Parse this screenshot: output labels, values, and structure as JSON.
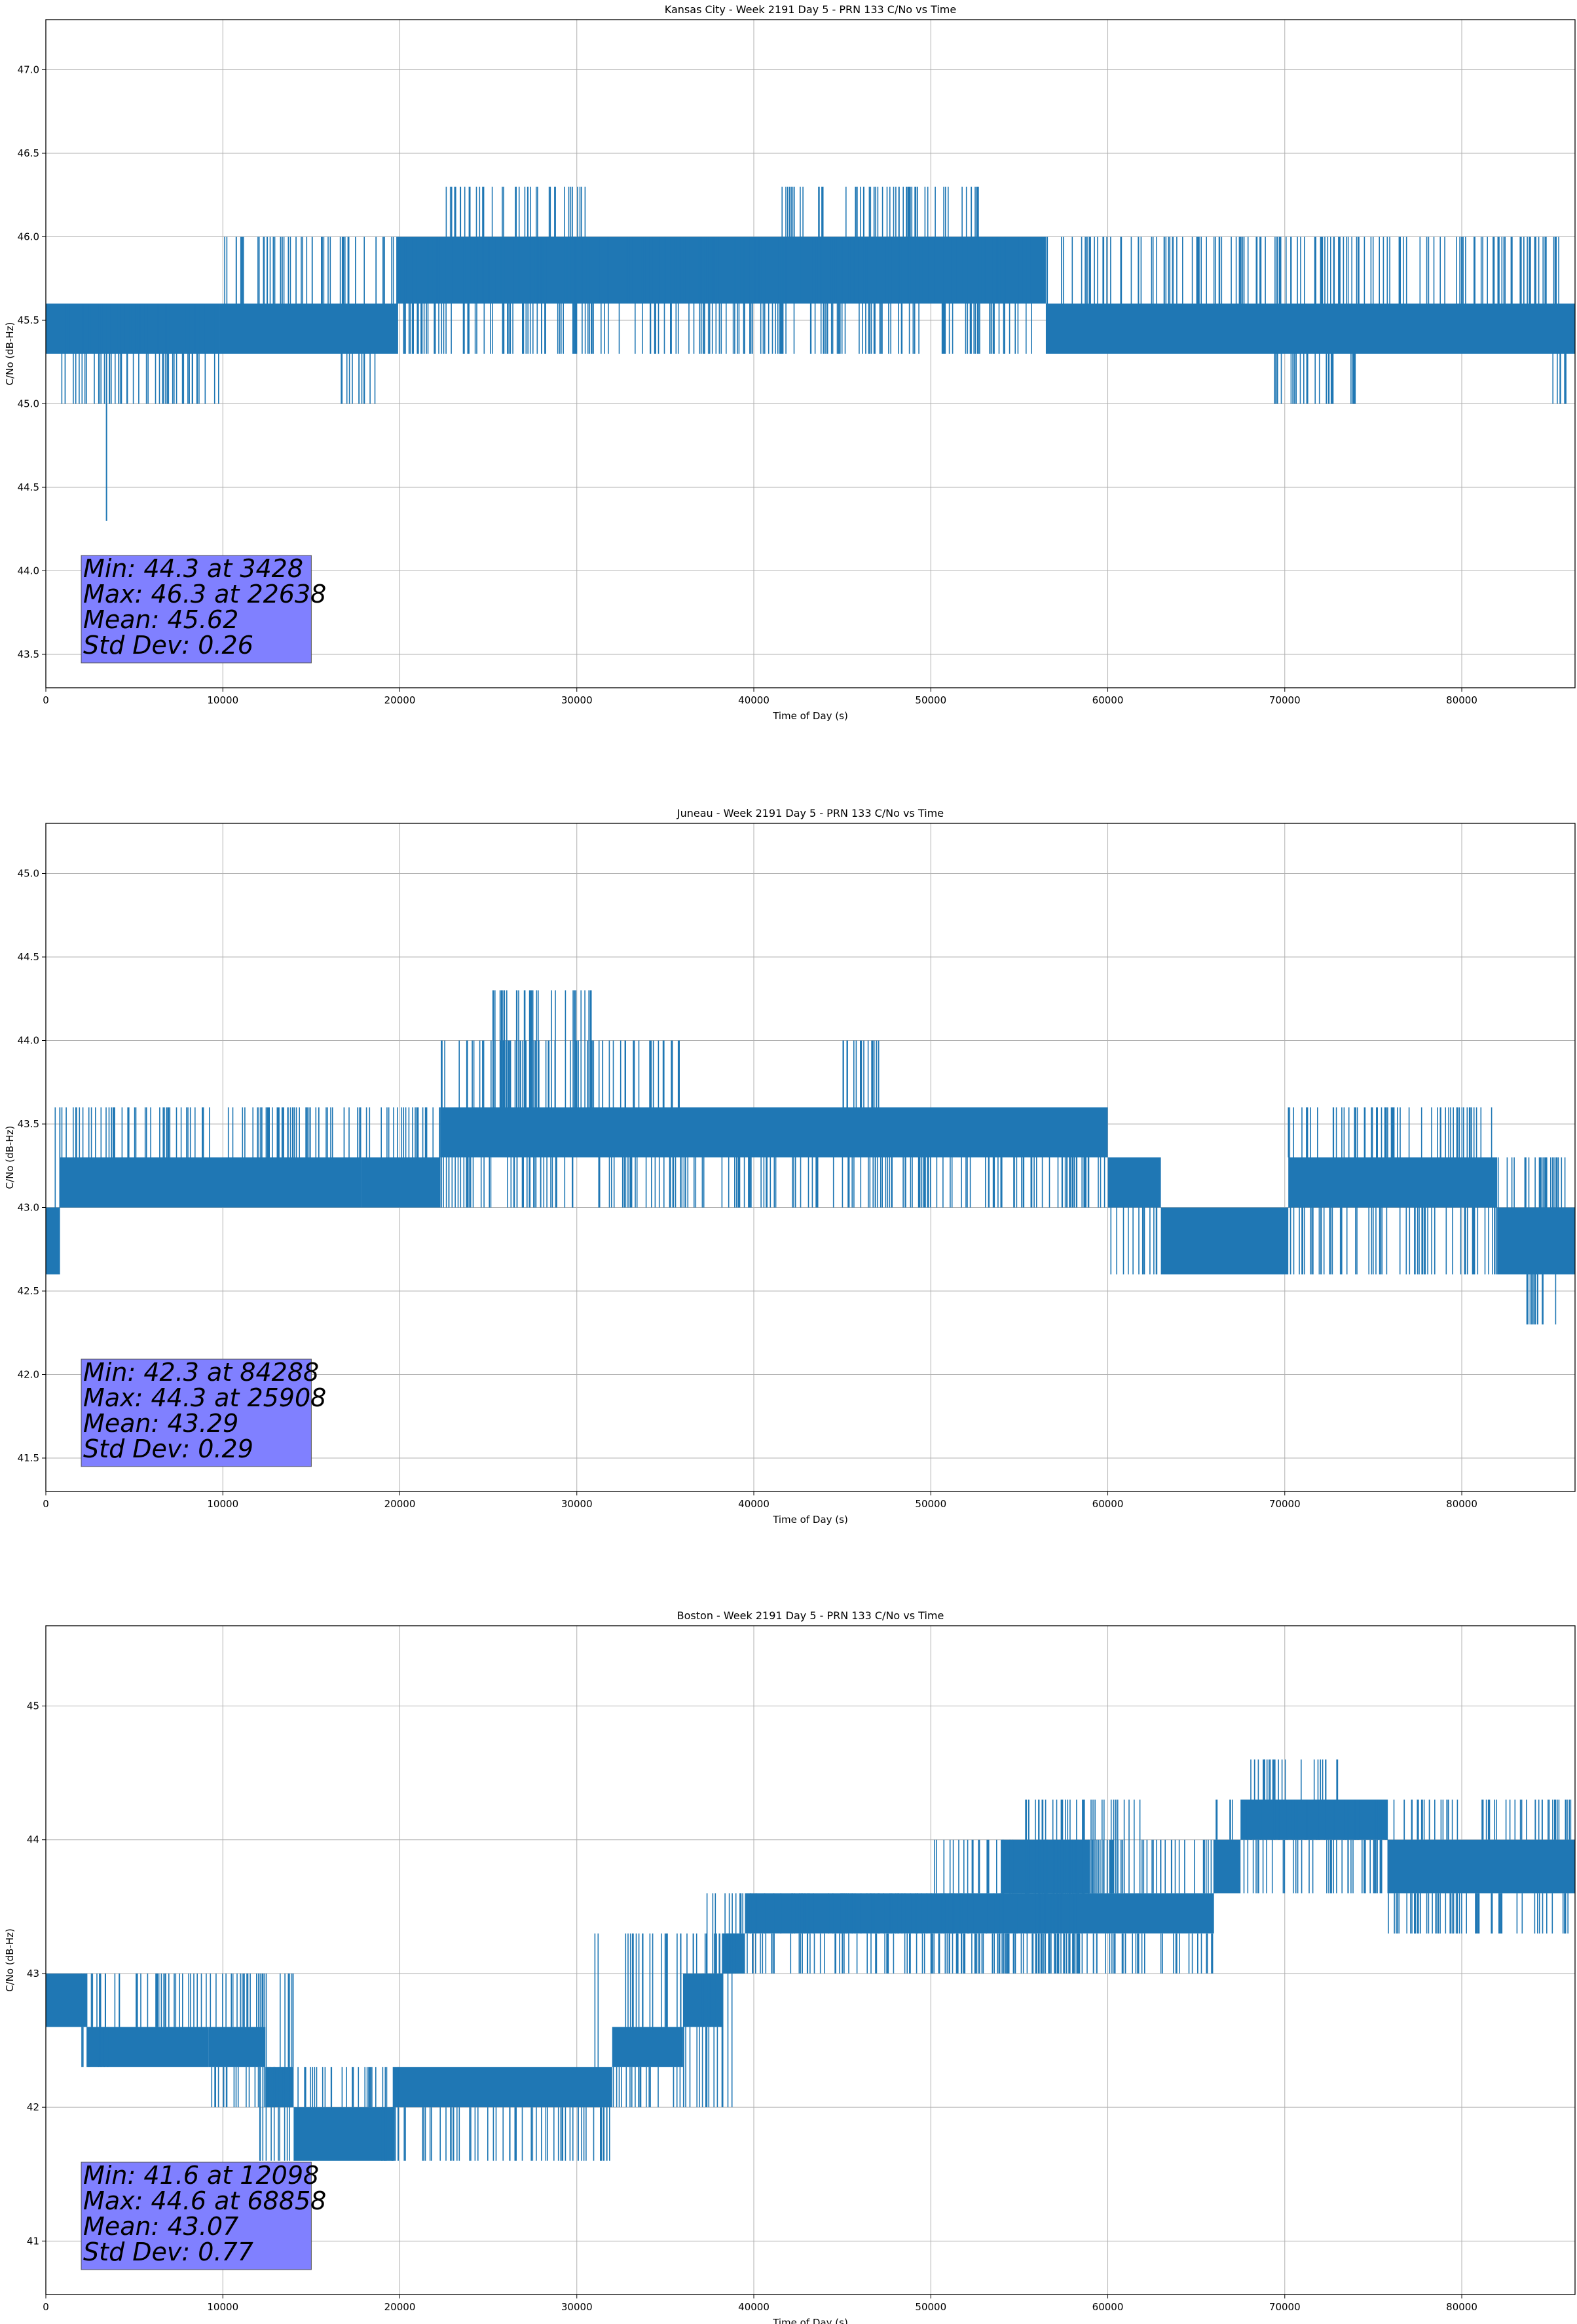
{
  "chart_data": [
    {
      "type": "line",
      "title": "Kansas City - Week 2191 Day 5 - PRN 133 C/No vs Time",
      "xlabel": "Time of Day (s)",
      "ylabel": "C/No (dB-Hz)",
      "xlim": [
        0,
        86400
      ],
      "ylim": [
        43.3,
        47.3
      ],
      "xticks": [
        0,
        10000,
        20000,
        30000,
        40000,
        50000,
        60000,
        70000,
        80000
      ],
      "yticks": [
        43.5,
        44.0,
        44.5,
        45.0,
        45.5,
        46.0,
        46.5,
        47.0
      ],
      "ytick_labels": [
        "43.5",
        "44.0",
        "44.5",
        "45.0",
        "45.5",
        "46.0",
        "46.5",
        "47.0"
      ],
      "grid": true,
      "line_color": "#1f77b4",
      "stats_box_color": "#8080ff",
      "stats": [
        "Min: 44.3 at 3428",
        "Max: 46.3 at 22638",
        "Mean: 45.62",
        "Std Dev: 0.26"
      ],
      "bands": [
        {
          "x": [
            0,
            9800
          ],
          "lo": 45.3,
          "hi": 45.6
        },
        {
          "x": [
            9800,
            19800
          ],
          "lo": 45.3,
          "hi": 45.6
        },
        {
          "x": [
            19800,
            56500
          ],
          "lo": 45.6,
          "hi": 46.0
        },
        {
          "x": [
            56500,
            86400
          ],
          "lo": 45.3,
          "hi": 45.6
        }
      ],
      "spike_regions": [
        {
          "x": [
            0,
            9800
          ],
          "levels": [
            45.0,
            45.3,
            45.6
          ]
        },
        {
          "x": [
            9800,
            19800
          ],
          "levels": [
            46.0,
            45.3
          ]
        },
        {
          "x": [
            16600,
            18800
          ],
          "levels": [
            45.0
          ]
        },
        {
          "x": [
            19800,
            56500
          ],
          "levels": [
            46.0,
            45.6,
            45.3
          ]
        },
        {
          "x": [
            22500,
            30500
          ],
          "levels": [
            46.3
          ]
        },
        {
          "x": [
            41500,
            53000
          ],
          "levels": [
            46.3
          ]
        },
        {
          "x": [
            56500,
            86400
          ],
          "levels": [
            46.0,
            45.3
          ]
        },
        {
          "x": [
            69000,
            74000
          ],
          "levels": [
            45.0
          ]
        },
        {
          "x": [
            85000,
            86400
          ],
          "levels": [
            45.0
          ]
        }
      ],
      "extremes": [
        {
          "x": 3428,
          "y": 44.3
        }
      ]
    },
    {
      "type": "line",
      "title": "Juneau - Week 2191 Day 5 - PRN 133 C/No vs Time",
      "xlabel": "Time of Day (s)",
      "ylabel": "C/No (dB-Hz)",
      "xlim": [
        0,
        86400
      ],
      "ylim": [
        41.3,
        45.3
      ],
      "xticks": [
        0,
        10000,
        20000,
        30000,
        40000,
        50000,
        60000,
        70000,
        80000
      ],
      "yticks": [
        41.5,
        42.0,
        42.5,
        43.0,
        43.5,
        44.0,
        44.5,
        45.0
      ],
      "ytick_labels": [
        "41.5",
        "42.0",
        "42.5",
        "43.0",
        "43.5",
        "44.0",
        "44.5",
        "45.0"
      ],
      "grid": true,
      "line_color": "#1f77b4",
      "stats_box_color": "#8080ff",
      "stats": [
        "Min: 42.3 at 84288",
        "Max: 44.3 at 25908",
        "Mean: 43.29",
        "Std Dev: 0.29"
      ],
      "bands": [
        {
          "x": [
            0,
            800
          ],
          "lo": 42.6,
          "hi": 43.0
        },
        {
          "x": [
            800,
            17800
          ],
          "lo": 43.0,
          "hi": 43.3
        },
        {
          "x": [
            17800,
            22300
          ],
          "lo": 43.0,
          "hi": 43.3
        },
        {
          "x": [
            22300,
            60000
          ],
          "lo": 43.3,
          "hi": 43.6
        },
        {
          "x": [
            60000,
            63000
          ],
          "lo": 43.0,
          "hi": 43.3
        },
        {
          "x": [
            63000,
            70200
          ],
          "lo": 42.6,
          "hi": 43.0
        },
        {
          "x": [
            70200,
            82000
          ],
          "lo": 43.0,
          "hi": 43.3
        },
        {
          "x": [
            82000,
            86400
          ],
          "lo": 42.6,
          "hi": 43.0
        }
      ],
      "spike_regions": [
        {
          "x": [
            500,
            17800
          ],
          "levels": [
            43.6
          ]
        },
        {
          "x": [
            17800,
            22300
          ],
          "levels": [
            43.6
          ]
        },
        {
          "x": [
            22300,
            36000
          ],
          "levels": [
            44.0
          ]
        },
        {
          "x": [
            25000,
            31500
          ],
          "levels": [
            44.3
          ]
        },
        {
          "x": [
            22300,
            60000
          ],
          "levels": [
            43.0
          ]
        },
        {
          "x": [
            45000,
            48500
          ],
          "levels": [
            44.0
          ]
        },
        {
          "x": [
            60000,
            70000
          ],
          "levels": [
            42.6
          ]
        },
        {
          "x": [
            70000,
            82000
          ],
          "levels": [
            43.6,
            42.6
          ]
        },
        {
          "x": [
            82000,
            86400
          ],
          "levels": [
            43.3
          ]
        },
        {
          "x": [
            83500,
            85500
          ],
          "levels": [
            42.3
          ]
        }
      ],
      "extremes": [
        {
          "x": 84288,
          "y": 42.3
        },
        {
          "x": 25908,
          "y": 44.3
        }
      ]
    },
    {
      "type": "line",
      "title": "Boston - Week 2191 Day 5 - PRN 133 C/No vs Time",
      "xlabel": "Time of Day (s)",
      "ylabel": "C/No (dB-Hz)",
      "xlim": [
        0,
        86400
      ],
      "ylim": [
        40.6,
        45.6
      ],
      "xticks": [
        0,
        10000,
        20000,
        30000,
        40000,
        50000,
        60000,
        70000,
        80000
      ],
      "yticks": [
        41,
        42,
        43,
        44,
        45
      ],
      "ytick_labels": [
        "41",
        "42",
        "43",
        "44",
        "45"
      ],
      "grid": true,
      "line_color": "#1f77b4",
      "stats_box_color": "#8080ff",
      "stats": [
        "Min: 41.6 at 12098",
        "Max: 44.6 at 68858",
        "Mean: 43.07",
        "Std Dev: 0.77"
      ],
      "bands": [
        {
          "x": [
            0,
            2300
          ],
          "lo": 42.6,
          "hi": 43.0
        },
        {
          "x": [
            2300,
            9200
          ],
          "lo": 42.3,
          "hi": 42.6
        },
        {
          "x": [
            9200,
            12400
          ],
          "lo": 42.3,
          "hi": 42.6
        },
        {
          "x": [
            12400,
            14000
          ],
          "lo": 42.0,
          "hi": 42.3
        },
        {
          "x": [
            14000,
            19600
          ],
          "lo": 41.6,
          "hi": 42.0
        },
        {
          "x": [
            19600,
            32000
          ],
          "lo": 42.0,
          "hi": 42.3
        },
        {
          "x": [
            32000,
            36000
          ],
          "lo": 42.3,
          "hi": 42.6
        },
        {
          "x": [
            36000,
            38200
          ],
          "lo": 42.6,
          "hi": 43.0
        },
        {
          "x": [
            38200,
            39500
          ],
          "lo": 43.0,
          "hi": 43.3
        },
        {
          "x": [
            39500,
            59000
          ],
          "lo": 43.3,
          "hi": 43.6
        },
        {
          "x": [
            54000,
            59000
          ],
          "lo": 43.6,
          "hi": 44.0
        },
        {
          "x": [
            59000,
            66000
          ],
          "lo": 43.3,
          "hi": 43.6
        },
        {
          "x": [
            66000,
            67500
          ],
          "lo": 43.6,
          "hi": 44.0
        },
        {
          "x": [
            67500,
            75800
          ],
          "lo": 44.0,
          "hi": 44.3
        },
        {
          "x": [
            75800,
            86400
          ],
          "lo": 43.6,
          "hi": 44.0
        }
      ],
      "spike_regions": [
        {
          "x": [
            0,
            4000
          ],
          "levels": [
            42.6
          ]
        },
        {
          "x": [
            2000,
            14000
          ],
          "levels": [
            43.0,
            42.3
          ]
        },
        {
          "x": [
            9000,
            14000
          ],
          "levels": [
            42.0
          ]
        },
        {
          "x": [
            12000,
            20000
          ],
          "levels": [
            41.6,
            42.3
          ]
        },
        {
          "x": [
            18000,
            32000
          ],
          "levels": [
            41.6,
            42.0
          ]
        },
        {
          "x": [
            31000,
            39000
          ],
          "levels": [
            43.3,
            42.0
          ]
        },
        {
          "x": [
            37000,
            59000
          ],
          "levels": [
            43.6,
            43.0
          ]
        },
        {
          "x": [
            50000,
            66000
          ],
          "levels": [
            44.0,
            43.0
          ]
        },
        {
          "x": [
            55000,
            62000
          ],
          "levels": [
            44.3
          ]
        },
        {
          "x": [
            66000,
            76000
          ],
          "levels": [
            44.3,
            43.6
          ]
        },
        {
          "x": [
            68000,
            73000
          ],
          "levels": [
            44.6
          ]
        },
        {
          "x": [
            75800,
            86400
          ],
          "levels": [
            44.3,
            43.3
          ]
        }
      ],
      "extremes": [
        {
          "x": 12098,
          "y": 41.6
        },
        {
          "x": 68858,
          "y": 44.6
        }
      ]
    }
  ]
}
